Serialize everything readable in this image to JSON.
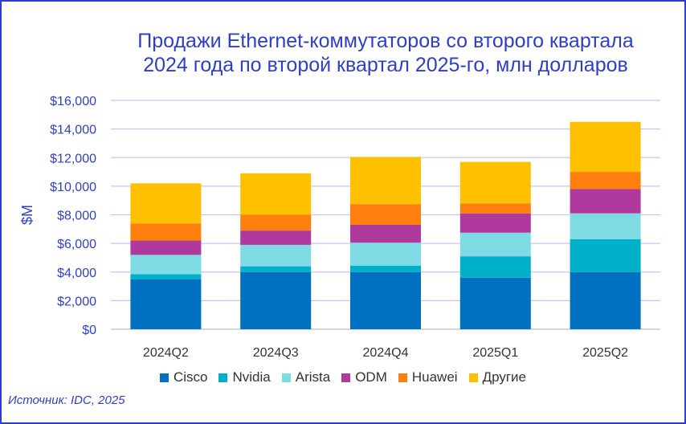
{
  "chart_data": {
    "type": "bar",
    "stacked": true,
    "title_lines": [
      "Продажи Ethernet-коммутаторов со второго квартала",
      "2024 года по второй квартал 2025-го, млн долларов"
    ],
    "ylabel": "$M",
    "xlabel": "",
    "ylim": [
      0,
      16000
    ],
    "yticks": [
      0,
      2000,
      4000,
      6000,
      8000,
      10000,
      12000,
      14000,
      16000
    ],
    "ytick_labels": [
      "$0",
      "$2,000",
      "$4,000",
      "$6,000",
      "$8,000",
      "$10,000",
      "$12,000",
      "$14,000",
      "$16,000"
    ],
    "categories": [
      "2024Q2",
      "2024Q3",
      "2024Q4",
      "2025Q1",
      "2025Q2"
    ],
    "series": [
      {
        "name": "Cisco",
        "color": "#0070c0",
        "values": [
          3500,
          4000,
          4000,
          3600,
          4000
        ]
      },
      {
        "name": "Nvidia",
        "color": "#00b0c8",
        "values": [
          350,
          400,
          450,
          1500,
          2300
        ]
      },
      {
        "name": "Arista",
        "color": "#7fdbe3",
        "values": [
          1350,
          1500,
          1600,
          1650,
          1800
        ]
      },
      {
        "name": "ODM",
        "color": "#b0399e",
        "values": [
          1000,
          1000,
          1250,
          1350,
          1700
        ]
      },
      {
        "name": "Huawei",
        "color": "#ff7f0e",
        "values": [
          1200,
          1100,
          1450,
          700,
          1200
        ]
      },
      {
        "name": "Другие",
        "color": "#ffc000",
        "values": [
          2800,
          2900,
          3300,
          2900,
          3500
        ]
      }
    ],
    "legend_position": "bottom",
    "grid": true
  },
  "source": "Источник: IDC, 2025"
}
